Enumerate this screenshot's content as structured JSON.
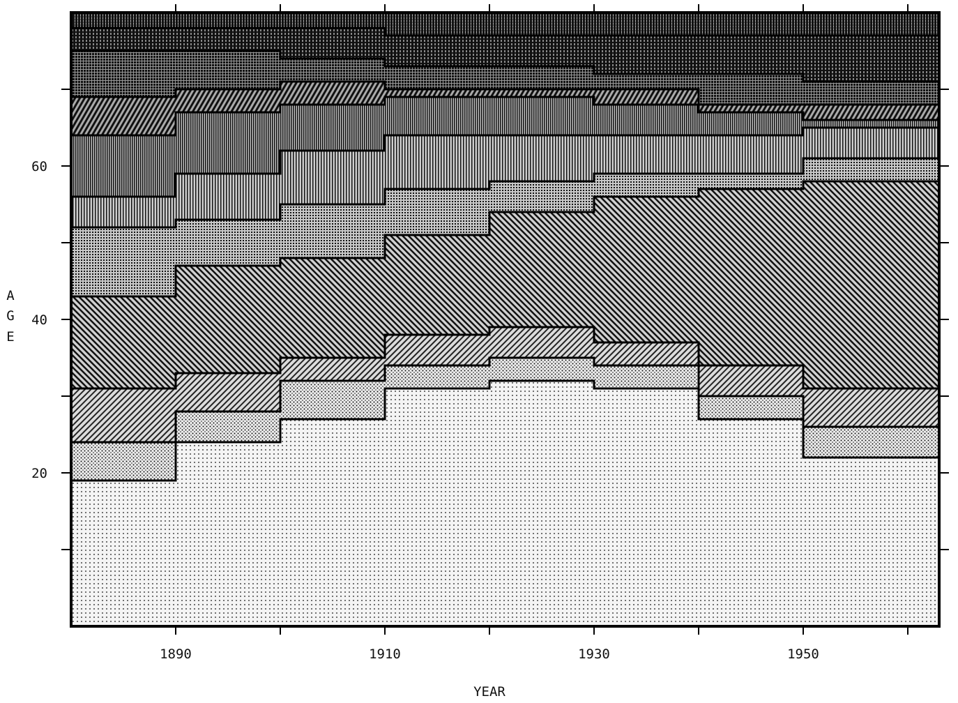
{
  "chart_data": {
    "type": "heatmap",
    "title": "",
    "xlabel": "YEAR",
    "ylabel": "A G E",
    "ylabel_letters": [
      "A",
      "G",
      "E"
    ],
    "xlim": [
      1880,
      1963
    ],
    "ylim": [
      0,
      80
    ],
    "x_ticks": [
      1890,
      1900,
      1910,
      1920,
      1930,
      1940,
      1950,
      1960
    ],
    "x_tick_labels": [
      "1890",
      "1910",
      "1930",
      "1950"
    ],
    "x_tick_label_values": [
      1890,
      1910,
      1930,
      1950
    ],
    "y_ticks": [
      10,
      20,
      30,
      40,
      50,
      60,
      70
    ],
    "y_tick_labels": [
      "20",
      "40",
      "60"
    ],
    "y_tick_label_values": [
      20,
      40,
      60
    ],
    "grid": false,
    "legend": "none",
    "shading_levels": 10,
    "contours": [
      {
        "level": 10,
        "x": [
          1880,
          1890,
          1900,
          1910,
          1920,
          1930,
          1940,
          1950,
          1963
        ],
        "y": [
          19,
          24,
          27,
          31,
          32,
          31,
          27,
          22,
          17
        ]
      },
      {
        "level": 9,
        "x": [
          1880,
          1890,
          1900,
          1910,
          1920,
          1930,
          1940,
          1950,
          1963
        ],
        "y": [
          24,
          28,
          32,
          34,
          35,
          34,
          30,
          26,
          22
        ]
      },
      {
        "level": 8,
        "x": [
          1880,
          1890,
          1900,
          1910,
          1920,
          1930,
          1940,
          1950,
          1963
        ],
        "y": [
          31,
          33,
          35,
          38,
          39,
          37,
          34,
          31,
          29
        ]
      },
      {
        "level": 7,
        "x": [
          1880,
          1890,
          1900,
          1910,
          1920,
          1930,
          1940,
          1950,
          1963
        ],
        "y": [
          43,
          47,
          48,
          51,
          54,
          56,
          57,
          58,
          58
        ]
      },
      {
        "level": 6,
        "x": [
          1880,
          1890,
          1900,
          1910,
          1920,
          1930,
          1940,
          1950,
          1963
        ],
        "y": [
          52,
          53,
          55,
          57,
          58,
          59,
          59,
          61,
          62
        ]
      },
      {
        "level": 5,
        "x": [
          1880,
          1890,
          1900,
          1910,
          1920,
          1930,
          1940,
          1950,
          1963
        ],
        "y": [
          56,
          59,
          62,
          64,
          64,
          64,
          64,
          65,
          65
        ]
      },
      {
        "level": 4,
        "x": [
          1880,
          1890,
          1900,
          1910,
          1920,
          1930,
          1940,
          1950,
          1963
        ],
        "y": [
          64,
          67,
          68,
          69,
          69,
          68,
          67,
          66,
          66
        ]
      },
      {
        "level": 3,
        "x": [
          1880,
          1890,
          1900,
          1910,
          1920,
          1930,
          1940,
          1950,
          1963
        ],
        "y": [
          69,
          70,
          71,
          70,
          70,
          70,
          68,
          68,
          67
        ]
      },
      {
        "level": 2,
        "x": [
          1880,
          1890,
          1900,
          1910,
          1920,
          1930,
          1940,
          1950,
          1963
        ],
        "y": [
          75,
          75,
          74,
          73,
          73,
          72,
          72,
          71,
          70
        ]
      },
      {
        "level": 1,
        "x": [
          1880,
          1890,
          1900,
          1910,
          1920,
          1930,
          1940,
          1950,
          1963
        ],
        "y": [
          78,
          78,
          78,
          77,
          77,
          77,
          77,
          77,
          77
        ]
      }
    ]
  }
}
